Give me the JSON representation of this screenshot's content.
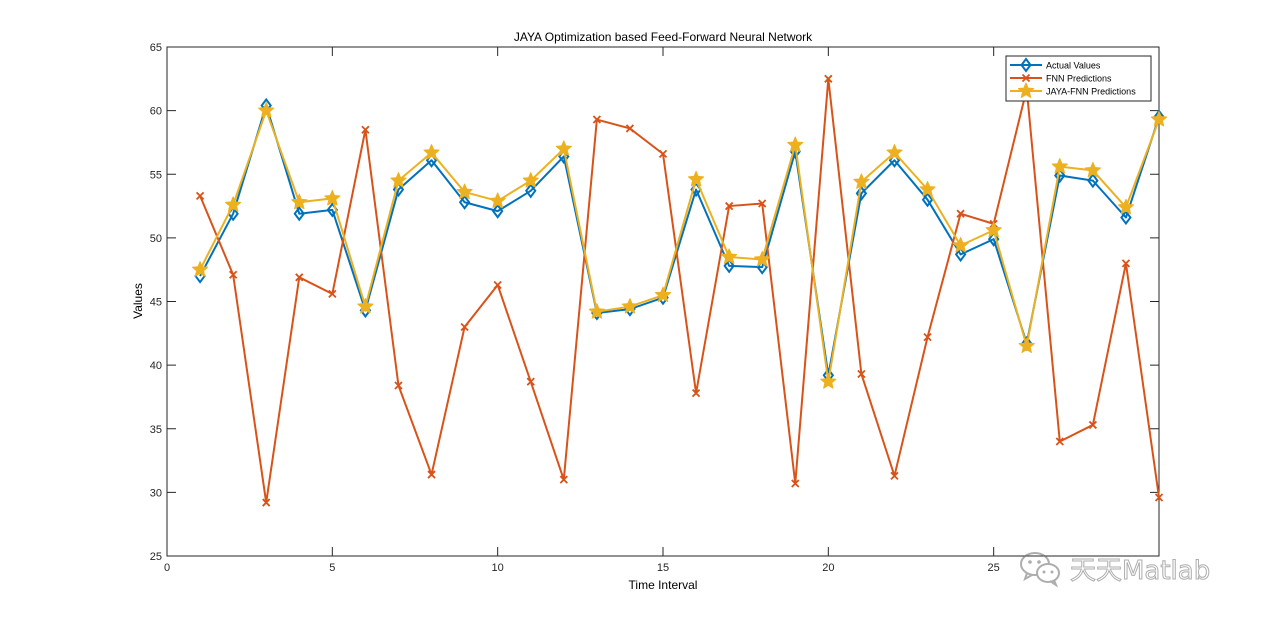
{
  "chart_data": {
    "type": "line",
    "title": "JAYA Optimization based Feed-Forward Neural Network",
    "xlabel": "Time Interval",
    "ylabel": "Values",
    "xlim": [
      0,
      30
    ],
    "ylim": [
      25,
      65
    ],
    "x_ticks": [
      0,
      5,
      10,
      15,
      20,
      25
    ],
    "y_ticks": [
      25,
      30,
      35,
      40,
      45,
      50,
      55,
      60,
      65
    ],
    "legend_position": "top-right",
    "x": [
      1,
      2,
      3,
      4,
      5,
      6,
      7,
      8,
      9,
      10,
      11,
      12,
      13,
      14,
      15,
      16,
      17,
      18,
      19,
      20,
      21,
      22,
      23,
      24,
      25,
      26,
      27,
      28,
      29,
      30
    ],
    "series": [
      {
        "name": "Actual Values",
        "color": "#0072BD",
        "marker": "diamond",
        "values": [
          47.0,
          51.9,
          60.4,
          51.9,
          52.2,
          44.3,
          53.8,
          56.1,
          52.8,
          52.1,
          53.7,
          56.4,
          44.1,
          44.4,
          45.3,
          53.8,
          47.8,
          47.7,
          56.8,
          39.2,
          53.5,
          56.1,
          53.0,
          48.7,
          49.9,
          41.7,
          54.9,
          54.5,
          51.6,
          59.5
        ]
      },
      {
        "name": "FNN Predictions",
        "color": "#D95319",
        "marker": "x",
        "values": [
          53.3,
          47.1,
          29.2,
          46.9,
          45.6,
          58.5,
          38.4,
          31.4,
          43.0,
          46.3,
          38.7,
          31.0,
          59.3,
          58.6,
          56.6,
          37.8,
          52.5,
          52.7,
          30.7,
          62.5,
          39.3,
          31.3,
          42.2,
          51.9,
          51.1,
          61.7,
          34.0,
          35.3,
          48.0,
          29.6
        ]
      },
      {
        "name": "JAYA-FNN Predictions",
        "color": "#EDB120",
        "marker": "star",
        "values": [
          47.5,
          52.6,
          60.0,
          52.8,
          53.1,
          44.6,
          54.5,
          56.7,
          53.6,
          52.9,
          54.5,
          57.0,
          44.2,
          44.6,
          45.5,
          54.6,
          48.5,
          48.3,
          57.3,
          38.7,
          54.4,
          56.7,
          53.8,
          49.4,
          50.6,
          41.5,
          55.6,
          55.3,
          52.4,
          59.3
        ]
      }
    ]
  },
  "watermark": {
    "text": "天天Matlab",
    "icon": "wechat-icon"
  }
}
